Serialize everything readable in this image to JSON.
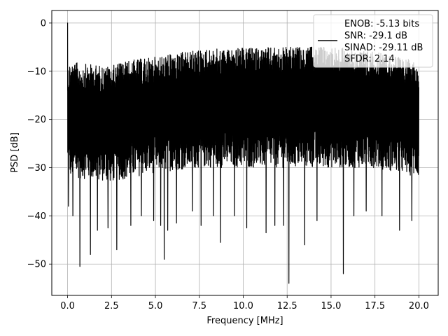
{
  "chart_data": {
    "type": "line",
    "title": "",
    "xlabel": "Frequency [MHz]",
    "ylabel": "PSD [dB]",
    "xlim": [
      -0.9,
      21.1
    ],
    "ylim": [
      -56.5,
      2.6
    ],
    "xticks": [
      0.0,
      2.5,
      5.0,
      7.5,
      10.0,
      12.5,
      15.0,
      17.5,
      20.0
    ],
    "xtick_labels": [
      "0.0",
      "2.5",
      "5.0",
      "7.5",
      "10.0",
      "12.5",
      "15.0",
      "17.5",
      "20.0"
    ],
    "yticks": [
      0,
      -10,
      -20,
      -30,
      -40,
      -50
    ],
    "ytick_labels": [
      "0",
      "−10",
      "−20",
      "−30",
      "−40",
      "−50"
    ],
    "grid": true,
    "legend_placement": "top-right",
    "series": [
      {
        "color": "#000000",
        "x_range": [
          0,
          20
        ],
        "peak": {
          "x": 0.0,
          "y": 0.0
        },
        "upper_envelope": [
          [
            0.1,
            -8
          ],
          [
            1.0,
            -8.5
          ],
          [
            2.5,
            -9
          ],
          [
            3.0,
            -8
          ],
          [
            5.0,
            -7
          ],
          [
            7.5,
            -5.5
          ],
          [
            10.0,
            -5.2
          ],
          [
            12.5,
            -5
          ],
          [
            14.0,
            -5
          ],
          [
            15.0,
            -4.8
          ],
          [
            17.5,
            -6
          ],
          [
            20.0,
            -8
          ]
        ],
        "lower_envelope": [
          [
            0.1,
            -32
          ],
          [
            2.5,
            -33
          ],
          [
            5.0,
            -31
          ],
          [
            7.5,
            -30
          ],
          [
            10.0,
            -30
          ],
          [
            12.5,
            -30
          ],
          [
            15.0,
            -30
          ],
          [
            17.5,
            -30
          ],
          [
            20.0,
            -32
          ]
        ],
        "dips": [
          [
            0.05,
            -38
          ],
          [
            0.3,
            -40
          ],
          [
            0.7,
            -50.5
          ],
          [
            1.3,
            -48
          ],
          [
            1.7,
            -43
          ],
          [
            2.3,
            -42.5
          ],
          [
            2.8,
            -47
          ],
          [
            3.6,
            -42
          ],
          [
            4.2,
            -40
          ],
          [
            4.9,
            -41
          ],
          [
            5.3,
            -42
          ],
          [
            5.5,
            -49
          ],
          [
            5.7,
            -43
          ],
          [
            6.2,
            -41.5
          ],
          [
            7.1,
            -39
          ],
          [
            7.6,
            -42
          ],
          [
            8.3,
            -40
          ],
          [
            8.7,
            -45.5
          ],
          [
            9.5,
            -40
          ],
          [
            10.2,
            -42.5
          ],
          [
            11.3,
            -43.5
          ],
          [
            11.8,
            -42
          ],
          [
            12.3,
            -42
          ],
          [
            12.6,
            -54
          ],
          [
            13.5,
            -46
          ],
          [
            14.2,
            -41
          ],
          [
            15.7,
            -52
          ],
          [
            16.3,
            -40
          ],
          [
            17.0,
            -39
          ],
          [
            17.9,
            -40
          ],
          [
            18.9,
            -43
          ],
          [
            19.6,
            -41
          ]
        ]
      }
    ],
    "legend": {
      "lines": [
        "ENOB: -5.13 bits",
        "SNR: -29.1 dB",
        "SINAD: -29.11 dB",
        "SFDR: 2.14"
      ],
      "handle_color": "#000000"
    }
  }
}
